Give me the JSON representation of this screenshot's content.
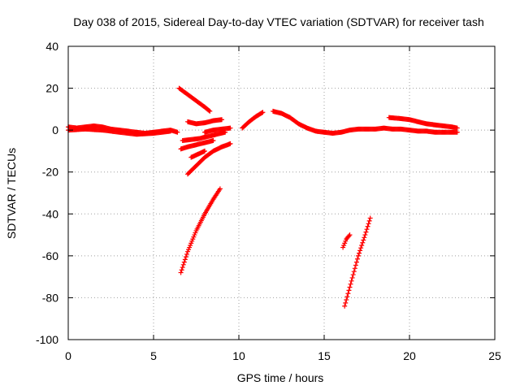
{
  "chart_data": {
    "type": "scatter",
    "title": "Day 038 of 2015, Sidereal Day-to-day VTEC variation (SDTVAR) for receiver tash",
    "xlabel": "GPS time / hours",
    "ylabel": "SDTVAR / TECUs",
    "xlim": [
      0,
      25
    ],
    "ylim": [
      -100,
      40
    ],
    "x_ticks": [
      0,
      5,
      10,
      15,
      20,
      25
    ],
    "y_ticks": [
      -100,
      -80,
      -60,
      -40,
      -20,
      0,
      20,
      40
    ],
    "x_tick_labels": [
      "0",
      "5",
      "10",
      "15",
      "20",
      "25"
    ],
    "y_tick_labels": [
      "-100",
      "-80",
      "-60",
      "-40",
      "-20",
      "0",
      "20",
      "40"
    ],
    "grid": true,
    "marker": "plus",
    "series_color": "#ff0000",
    "series": [
      {
        "x": [
          0.0,
          0.5,
          1.0,
          1.5,
          2.0,
          2.5,
          3.0,
          3.5,
          4.0,
          4.5,
          5.0,
          5.5,
          6.0,
          6.4
        ],
        "y": [
          1.5,
          1.0,
          1.5,
          2.0,
          1.5,
          0.5,
          0.0,
          -0.5,
          -1.0,
          -1.5,
          -1.0,
          -0.5,
          0.0,
          -1.0
        ]
      },
      {
        "x": [
          0.0,
          1.0,
          2.0,
          3.0,
          4.0,
          5.0,
          6.0
        ],
        "y": [
          0.0,
          0.5,
          0.0,
          -1.0,
          -2.0,
          -1.5,
          -0.5
        ]
      },
      {
        "x": [
          6.5,
          7.0,
          7.5,
          8.0,
          8.3
        ],
        "y": [
          20.0,
          17.0,
          14.0,
          11.0,
          9.0
        ]
      },
      {
        "x": [
          7.0,
          7.5,
          8.0,
          8.5,
          9.0
        ],
        "y": [
          4.0,
          3.0,
          3.5,
          4.5,
          5.0
        ]
      },
      {
        "x": [
          6.7,
          7.2,
          7.7,
          8.2,
          8.7,
          9.2
        ],
        "y": [
          -5.0,
          -4.5,
          -4.0,
          -3.0,
          -2.0,
          -1.0
        ]
      },
      {
        "x": [
          6.6,
          7.0,
          7.5,
          8.0,
          8.5
        ],
        "y": [
          -9.0,
          -8.0,
          -7.0,
          -6.0,
          -5.0
        ]
      },
      {
        "x": [
          8.0,
          8.5,
          9.0,
          9.5
        ],
        "y": [
          -1.0,
          0.0,
          0.5,
          1.0
        ]
      },
      {
        "x": [
          7.0,
          7.5,
          8.0,
          8.5,
          9.0,
          9.5
        ],
        "y": [
          -21.0,
          -17.0,
          -13.0,
          -10.0,
          -8.0,
          -6.5
        ]
      },
      {
        "x": [
          7.2,
          7.6,
          8.0
        ],
        "y": [
          -13.0,
          -11.5,
          -10.0
        ]
      },
      {
        "x": [
          10.2,
          10.6,
          11.0,
          11.4
        ],
        "y": [
          1.0,
          4.0,
          6.5,
          8.5
        ]
      },
      {
        "x": [
          12.0,
          12.5,
          13.0,
          13.5,
          14.0,
          14.5,
          15.0,
          15.5,
          16.0,
          16.5,
          17.0,
          17.5,
          18.0,
          18.5,
          19.0,
          19.5,
          20.0,
          20.5,
          21.0,
          21.5,
          22.0,
          22.5,
          22.8
        ],
        "y": [
          9.0,
          8.0,
          6.0,
          3.0,
          1.0,
          -0.5,
          -1.0,
          -1.5,
          -1.0,
          0.0,
          0.5,
          0.5,
          0.5,
          1.0,
          0.5,
          0.5,
          0.0,
          -0.5,
          -0.5,
          -1.0,
          -1.0,
          -1.0,
          -1.0
        ]
      },
      {
        "x": [
          18.8,
          19.5,
          20.0,
          20.5,
          21.0,
          21.5,
          22.0,
          22.5,
          22.8
        ],
        "y": [
          6.0,
          5.5,
          5.0,
          4.0,
          3.0,
          2.5,
          2.0,
          1.5,
          1.0
        ]
      },
      {
        "x": [
          6.6,
          7.0,
          7.5,
          8.0,
          8.5,
          8.9
        ],
        "y": [
          -68.0,
          -58.0,
          -48.0,
          -40.0,
          -33.0,
          -28.0
        ]
      },
      {
        "x": [
          16.2,
          16.6,
          17.0,
          17.4,
          17.7
        ],
        "y": [
          -84.0,
          -72.0,
          -60.0,
          -50.0,
          -42.0
        ]
      },
      {
        "x": [
          16.1,
          16.3,
          16.5
        ],
        "y": [
          -56.0,
          -52.0,
          -50.0
        ]
      }
    ]
  }
}
